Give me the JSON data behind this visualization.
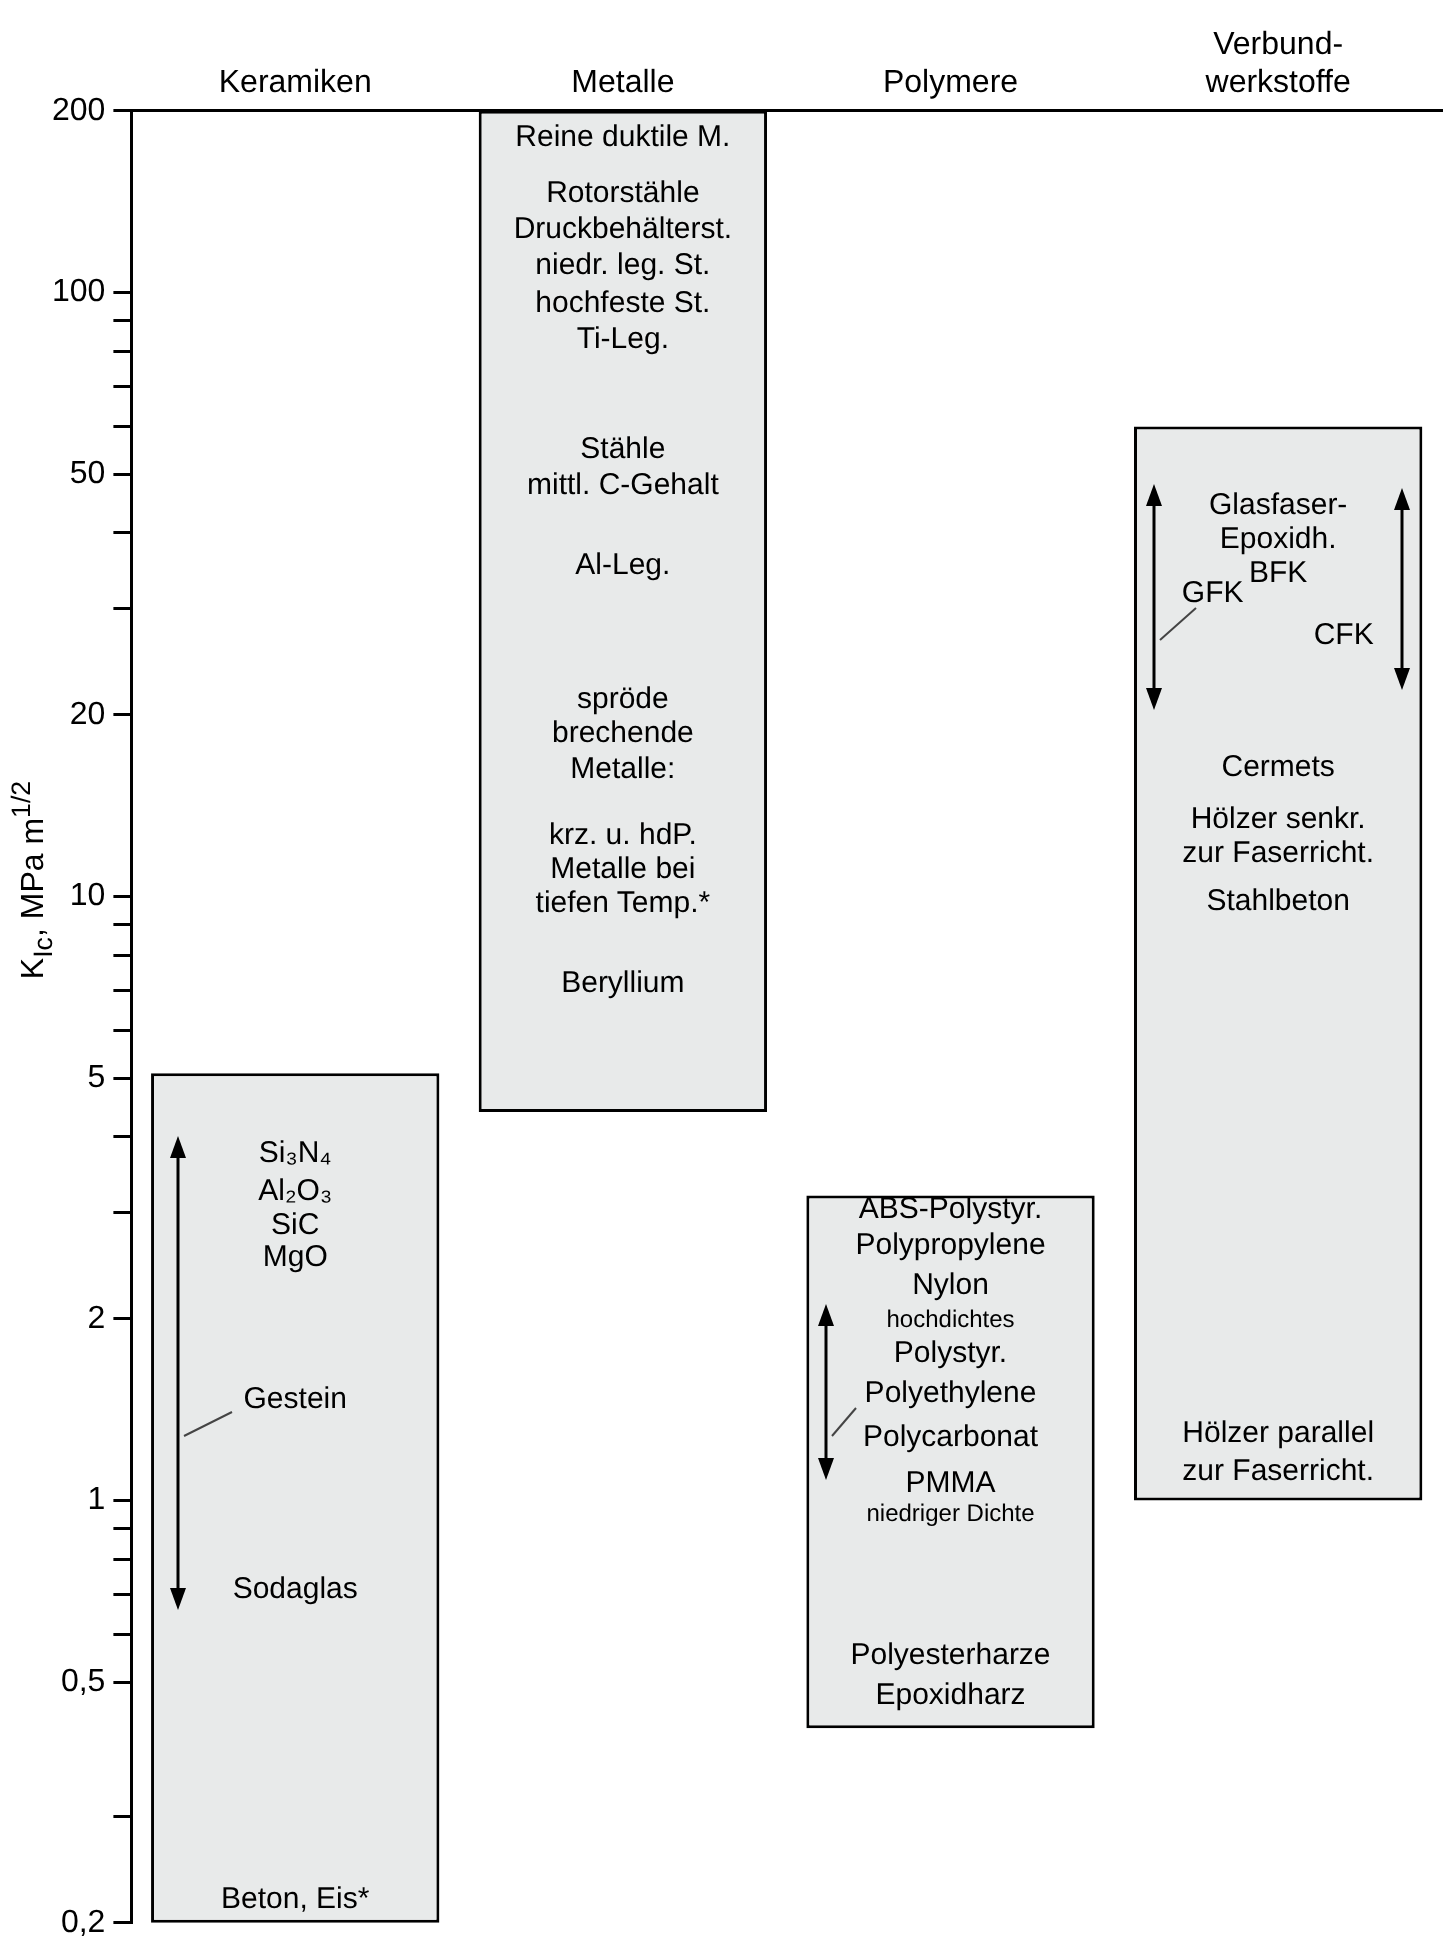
{
  "chart_data": {
    "type": "bar",
    "ylabel": "K$_{Ic}$, MPa m$^{1/2}$",
    "categories": [
      "Keramiken",
      "Metalle",
      "Polymere",
      "Verbund-\nwerkstoffe"
    ],
    "log": "y",
    "ylim": [
      0.2,
      200
    ],
    "yticks": [
      {
        "value": 0.2,
        "label": "0,2"
      },
      {
        "value": 0.3,
        "label": null
      },
      {
        "value": 0.5,
        "label": "0,5"
      },
      {
        "value": 0.6,
        "label": null
      },
      {
        "value": 0.7,
        "label": null
      },
      {
        "value": 0.8,
        "label": null
      },
      {
        "value": 0.9,
        "label": null
      },
      1,
      2,
      {
        "value": 3,
        "label": null
      },
      {
        "value": 4,
        "label": null
      },
      5,
      {
        "value": 6,
        "label": null
      },
      {
        "value": 7,
        "label": null
      },
      {
        "value": 8,
        "label": null
      },
      {
        "value": 9,
        "label": null
      },
      10,
      20,
      {
        "value": 30,
        "label": null
      },
      {
        "value": 40,
        "label": null
      },
      50,
      {
        "value": 60,
        "label": null
      },
      {
        "value": 70,
        "label": null
      },
      {
        "value": 80,
        "label": null
      },
      {
        "value": 90,
        "label": null
      },
      100,
      200
    ],
    "grid": false,
    "legend": false,
    "series": [
      {
        "type": "bar",
        "color": "#e8eaea",
        "values": [
          4.9,
          195.6,
          2.78,
          59
        ],
        "base": [
          0.2,
          4.4,
          0.42,
          1.0
        ]
      },
      {
        "type": "bar",
        "color": "#e8eaea",
        "values": [
          null,
          10.2,
          null,
          null
        ],
        "base": [
          null,
          6.8,
          null,
          null
        ]
      }
    ],
    "annotations": [
      "Si₃N₄",
      "Al₂O₃",
      "SiC",
      "MgO",
      "Gestein",
      "Sodaglas",
      "Beton, Eis*",
      "Reine duktile M.",
      "Rotorstähle",
      "Druckbehälterst.",
      "niedr. leg. St.",
      "hochfeste St.",
      "Ti-Leg.",
      "Stähle",
      "mittl. C-Gehalt",
      "Al-Leg.",
      "spröde",
      "brechende",
      "Metalle:",
      "krz. u. hdP.",
      "Metalle bei",
      "tiefen Temp.*",
      "Beryllium",
      "ABS-Polystyr.",
      "Polypropylene",
      "Nylon",
      "hochdichtes",
      "Polystyr.",
      "Polyethylene",
      "Polycarbonat",
      "PMMA",
      "niedriger Dichte",
      "Polyesterharze",
      "Epoxidharz",
      "Glasfaser-",
      "Epoxidh.",
      "BFK",
      "GFK",
      "CFK",
      "Cermets",
      "Hölzer senkr.",
      "zur Faserricht.",
      "Stahlbeton",
      "Hölzer parallel",
      "zur Faserricht."
    ]
  }
}
